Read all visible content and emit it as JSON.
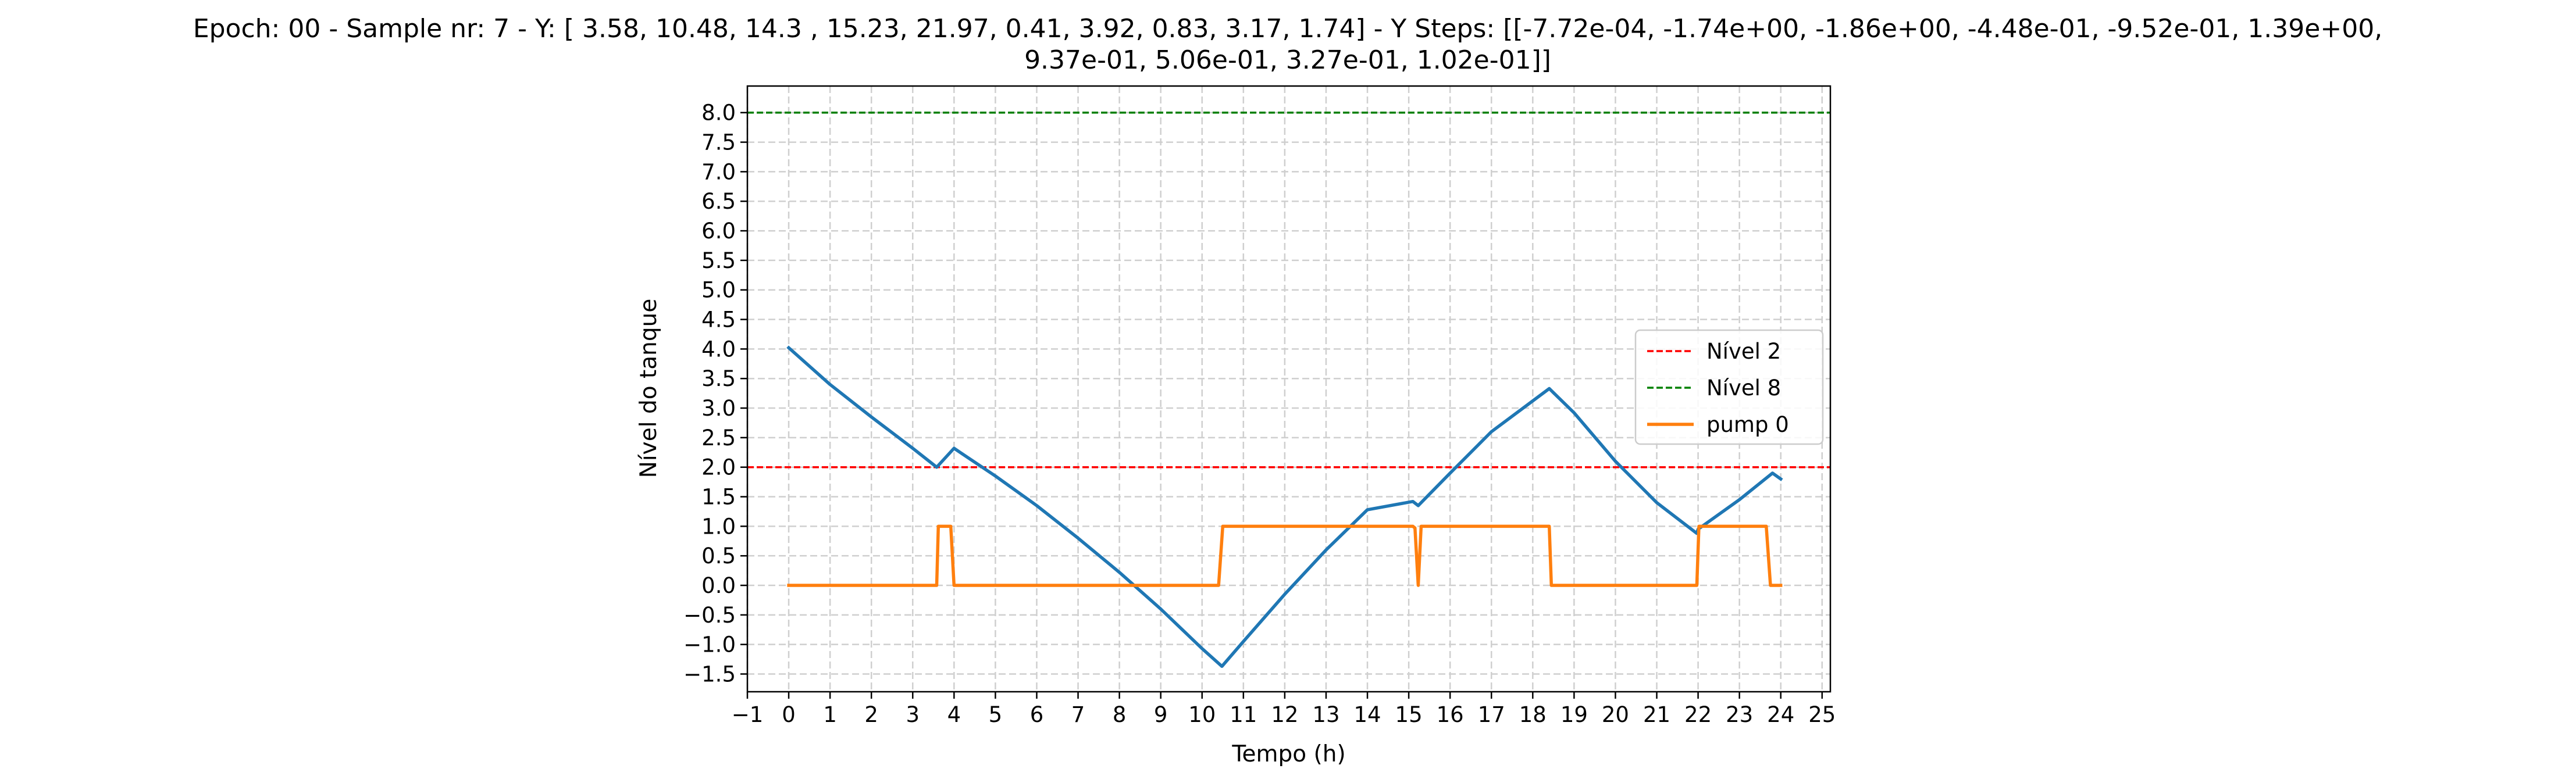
{
  "chart_data": {
    "type": "line",
    "title_line1": "Epoch: 00 - Sample nr: 7 - Y: [ 3.58, 10.48, 14.3 , 15.23, 21.97,  0.41,  3.92,  0.83,  3.17,  1.74] - Y Steps: [[-7.72e-04, -1.74e+00, -1.86e+00, -4.48e-01, -9.52e-01,  1.39e+00,",
    "title_line2": "9.37e-01,  5.06e-01,  3.27e-01,  1.02e-01]]",
    "xlabel": "Tempo (h)",
    "ylabel": "Nível do tanque",
    "xlim": [
      -1.0,
      25.2
    ],
    "ylim": [
      -1.8,
      8.45
    ],
    "x_ticks": [
      -1,
      0,
      1,
      2,
      3,
      4,
      5,
      6,
      7,
      8,
      9,
      10,
      11,
      12,
      13,
      14,
      15,
      16,
      17,
      18,
      19,
      20,
      21,
      22,
      23,
      24,
      25
    ],
    "x_tick_labels": [
      "−1",
      "0",
      "1",
      "2",
      "3",
      "4",
      "5",
      "6",
      "7",
      "8",
      "9",
      "10",
      "11",
      "12",
      "13",
      "14",
      "15",
      "16",
      "17",
      "18",
      "19",
      "20",
      "21",
      "22",
      "23",
      "24",
      "25"
    ],
    "y_ticks": [
      -1.5,
      -1.0,
      -0.5,
      0.0,
      0.5,
      1.0,
      1.5,
      2.0,
      2.5,
      3.0,
      3.5,
      4.0,
      4.5,
      5.0,
      5.5,
      6.0,
      6.5,
      7.0,
      7.5,
      8.0
    ],
    "y_tick_labels": [
      "−1.5",
      "−1.0",
      "−0.5",
      "0.0",
      "0.5",
      "1.0",
      "1.5",
      "2.0",
      "2.5",
      "3.0",
      "3.5",
      "4.0",
      "4.5",
      "5.0",
      "5.5",
      "6.0",
      "6.5",
      "7.0",
      "7.5",
      "8.0"
    ],
    "grid": true,
    "legend_position": "center-right",
    "hlines": [
      {
        "name": "Nível 2",
        "y": 2.0,
        "color": "#ff0000",
        "style": "dashed"
      },
      {
        "name": "Nível 8",
        "y": 8.0,
        "color": "#008000",
        "style": "dashed"
      }
    ],
    "series": [
      {
        "color": "#1f77b4",
        "style": "solid",
        "x": [
          0,
          1,
          2,
          3,
          3.58,
          4.0,
          5,
          6,
          7,
          8,
          9,
          10,
          10.48,
          11,
          12,
          13,
          14,
          15.1,
          15.23,
          16,
          17,
          18.4,
          19,
          20,
          21,
          21.97,
          22,
          23,
          23.8,
          24.0
        ],
        "y": [
          4.02,
          3.4,
          2.85,
          2.32,
          2.0,
          2.32,
          1.85,
          1.35,
          0.8,
          0.22,
          -0.4,
          -1.07,
          -1.37,
          -0.95,
          -0.15,
          0.6,
          1.28,
          1.42,
          1.35,
          1.9,
          2.6,
          3.33,
          2.92,
          2.1,
          1.4,
          0.88,
          0.95,
          1.45,
          1.9,
          1.8
        ]
      },
      {
        "name": "pump 0",
        "color": "#ff7f0e",
        "style": "solid",
        "x": [
          0,
          3.58,
          3.62,
          3.92,
          4.0,
          10.4,
          10.5,
          15.1,
          15.15,
          15.23,
          15.3,
          18.4,
          18.45,
          21.97,
          22.02,
          23.65,
          23.75,
          24.0
        ],
        "y": [
          0,
          0,
          1,
          1,
          0,
          0,
          1,
          1,
          0.97,
          0,
          1,
          1,
          0,
          0,
          1,
          1,
          0,
          0
        ]
      }
    ]
  }
}
